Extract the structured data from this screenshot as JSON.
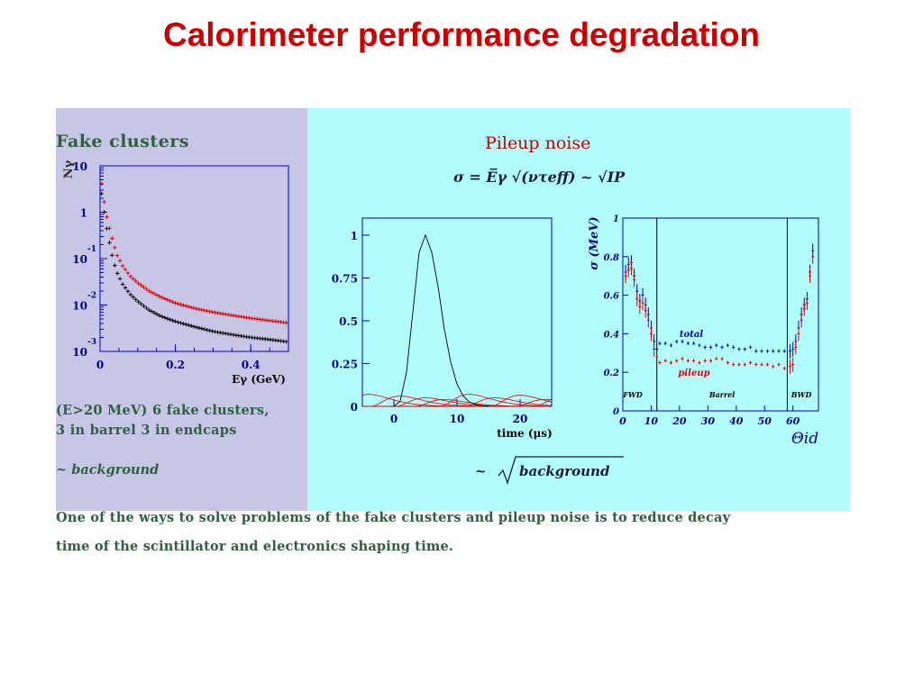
{
  "title": "Calorimeter performance degradation",
  "fake_panel": {
    "title": "Fake clusters",
    "text_line1": "(E>20 MeV) 6 fake clusters,",
    "text_line2": "3 in barrel 3 in endcaps",
    "note": "~ background",
    "bg_color": "#c7c6e6"
  },
  "pileup_panel": {
    "title": "Pileup noise",
    "formula": "σ = E̅γ √(ντeff) ~ √IP",
    "note": "~ √background",
    "bg_color": "#b0fdfc"
  },
  "bottom_text": {
    "line1": "One of the ways to solve problems of the fake clusters and pileup noise is to reduce decay",
    "line2": "time of the scintillator and electronics shaping time."
  },
  "colors": {
    "title": "#cc0000",
    "text": "#2f5f3f",
    "axis": "#0000cc",
    "red": "#e00000",
    "blue": "#0000cc",
    "black": "#000000"
  },
  "chart_data": [
    {
      "type": "scatter",
      "ylabel": "Nγ",
      "xlabel": "Eγ (GeV)",
      "xlim": [
        0,
        0.5
      ],
      "ylim": [
        0.001,
        10
      ],
      "yscale": "log",
      "xticks": [
        "0",
        "0.2",
        "0.4"
      ],
      "yticks": [
        "10",
        "1",
        "10⁻¹",
        "10⁻²",
        "10⁻³"
      ],
      "series": [
        {
          "color": "#e00000",
          "x": [
            0.005,
            0.015,
            0.025,
            0.035,
            0.045,
            0.06,
            0.08,
            0.1,
            0.13,
            0.16,
            0.2,
            0.25,
            0.3,
            0.35,
            0.4,
            0.45,
            0.5
          ],
          "y": [
            3.6,
            1.0,
            0.45,
            0.22,
            0.12,
            0.07,
            0.042,
            0.03,
            0.02,
            0.015,
            0.011,
            0.0085,
            0.007,
            0.006,
            0.0052,
            0.0046,
            0.0041
          ]
        },
        {
          "color": "#000000",
          "x": [
            0.005,
            0.015,
            0.025,
            0.035,
            0.045,
            0.06,
            0.08,
            0.1,
            0.13,
            0.16,
            0.2,
            0.25,
            0.3,
            0.35,
            0.4,
            0.45,
            0.5
          ],
          "y": [
            2.2,
            0.6,
            0.22,
            0.09,
            0.05,
            0.028,
            0.017,
            0.012,
            0.0078,
            0.0058,
            0.0044,
            0.0034,
            0.0027,
            0.0023,
            0.002,
            0.0018,
            0.0016
          ]
        }
      ]
    },
    {
      "type": "line",
      "xlabel": "time (μs)",
      "xlim": [
        -5,
        25
      ],
      "ylim": [
        0,
        1.1
      ],
      "xticks": [
        "0",
        "10",
        "20"
      ],
      "yticks": [
        "0",
        "0.25",
        "0.5",
        "0.75",
        "1"
      ],
      "series": [
        {
          "color": "#000000",
          "x": [
            0,
            1,
            2,
            3,
            4,
            5,
            6,
            7,
            8,
            9,
            10,
            11,
            12,
            13,
            14,
            15
          ],
          "y": [
            0,
            0.03,
            0.2,
            0.55,
            0.9,
            1.0,
            0.9,
            0.7,
            0.45,
            0.26,
            0.13,
            0.06,
            0.025,
            0.01,
            0.004,
            0.001
          ]
        }
      ]
    },
    {
      "type": "scatter",
      "ylabel": "σ (MeV)",
      "xlabel": "Θid",
      "xlim": [
        0,
        69
      ],
      "ylim": [
        0,
        1
      ],
      "xticks": [
        "0",
        "10",
        "20",
        "30",
        "40",
        "50",
        "60"
      ],
      "yticks": [
        "0",
        "0.2",
        "0.4",
        "0.6",
        "0.8",
        "1"
      ],
      "regions": [
        "FWD",
        "Barrel",
        "BWD"
      ],
      "boundaries": [
        12,
        58
      ],
      "series": [
        {
          "name": "total",
          "color": "#0000cc",
          "x": [
            1,
            2,
            3,
            4,
            5,
            6,
            7,
            8,
            9,
            10,
            11,
            12,
            13,
            15,
            17,
            19,
            21,
            23,
            25,
            27,
            29,
            31,
            33,
            35,
            37,
            39,
            41,
            43,
            45,
            47,
            49,
            51,
            53,
            55,
            57,
            59,
            60,
            61,
            62,
            63,
            64,
            65,
            66,
            67
          ],
          "y": [
            0.72,
            0.76,
            0.77,
            0.7,
            0.62,
            0.57,
            0.6,
            0.55,
            0.5,
            0.43,
            0.36,
            0.32,
            0.35,
            0.35,
            0.34,
            0.36,
            0.36,
            0.35,
            0.35,
            0.34,
            0.33,
            0.33,
            0.34,
            0.33,
            0.34,
            0.33,
            0.32,
            0.32,
            0.33,
            0.31,
            0.31,
            0.31,
            0.31,
            0.31,
            0.31,
            0.31,
            0.32,
            0.36,
            0.43,
            0.5,
            0.55,
            0.58,
            0.72,
            0.83
          ]
        },
        {
          "name": "pileup",
          "color": "#e00000",
          "x": [
            1,
            2,
            3,
            4,
            5,
            6,
            7,
            8,
            9,
            10,
            11,
            12,
            13,
            15,
            17,
            19,
            21,
            23,
            25,
            27,
            29,
            31,
            33,
            35,
            37,
            39,
            41,
            43,
            45,
            47,
            49,
            51,
            53,
            55,
            57,
            59,
            60,
            61,
            62,
            63,
            64,
            65,
            66,
            67
          ],
          "y": [
            0.7,
            0.73,
            0.74,
            0.68,
            0.58,
            0.54,
            0.56,
            0.52,
            0.47,
            0.4,
            0.32,
            0.28,
            0.25,
            0.26,
            0.25,
            0.26,
            0.27,
            0.26,
            0.26,
            0.25,
            0.26,
            0.26,
            0.27,
            0.27,
            0.25,
            0.24,
            0.24,
            0.24,
            0.25,
            0.24,
            0.24,
            0.24,
            0.23,
            0.24,
            0.22,
            0.23,
            0.24,
            0.33,
            0.4,
            0.47,
            0.53,
            0.56,
            0.7,
            0.8
          ]
        }
      ]
    }
  ]
}
